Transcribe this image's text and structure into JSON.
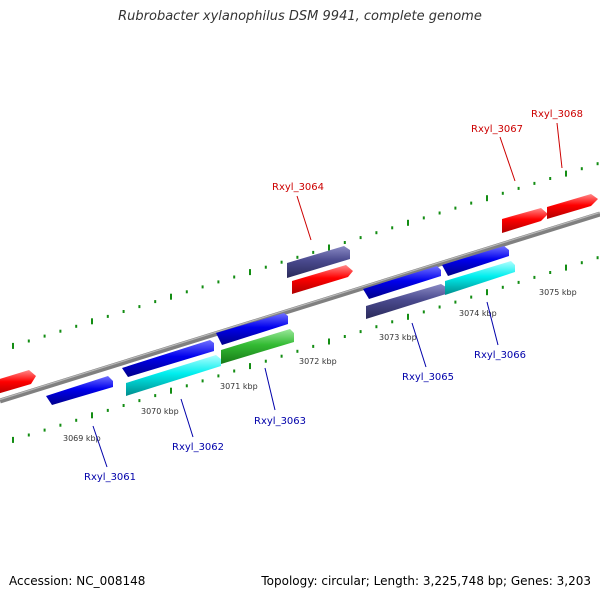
{
  "title": "Rubrobacter xylanophilus DSM 9941, complete genome",
  "footer": {
    "accession": "Accession: NC_008148",
    "summary": "Topology: circular; Length: 3,225,748 bp; Genes: 3,203"
  },
  "colors": {
    "forward_label": "#cc0000",
    "reverse_label": "#0000aa",
    "red_gene": "#ff0000",
    "blue_gene": "#0000ee",
    "cyan_gene": "#00e5ee",
    "green_gene": "#33bb33",
    "purple_gene": "#4a4a8e",
    "backbone": "#808080",
    "tick": "#138d13"
  },
  "scale_labels": [
    "3069 kbp",
    "3070 kbp",
    "3071 kbp",
    "3072 kbp",
    "3073 kbp",
    "3074 kbp",
    "3075 kbp"
  ],
  "gene_labels": [
    {
      "name": "Rxyl_3061",
      "strand": "reverse"
    },
    {
      "name": "Rxyl_3062",
      "strand": "reverse"
    },
    {
      "name": "Rxyl_3063",
      "strand": "reverse"
    },
    {
      "name": "Rxyl_3064",
      "strand": "forward"
    },
    {
      "name": "Rxyl_3065",
      "strand": "reverse"
    },
    {
      "name": "Rxyl_3066",
      "strand": "reverse"
    },
    {
      "name": "Rxyl_3067",
      "strand": "forward"
    },
    {
      "name": "Rxyl_3068",
      "strand": "forward"
    }
  ]
}
